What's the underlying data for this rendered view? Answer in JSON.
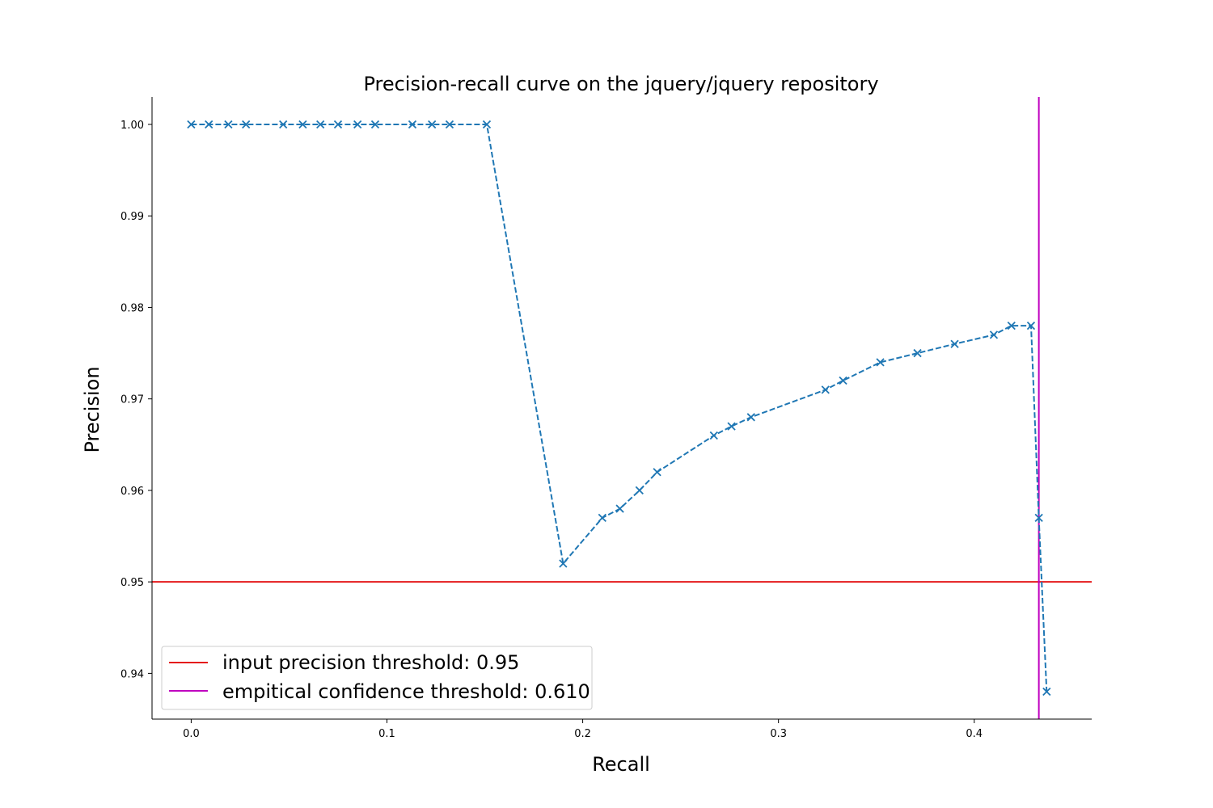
{
  "chart_data": {
    "type": "line",
    "title": "Precision-recall curve on the jquery/jquery repository",
    "xlabel": "Recall",
    "ylabel": "Precision",
    "xlim": [
      -0.02,
      0.46
    ],
    "ylim": [
      0.935,
      1.003
    ],
    "xticks": [
      0.0,
      0.1,
      0.2,
      0.3,
      0.4
    ],
    "xtick_labels": [
      "0.0",
      "0.1",
      "0.2",
      "0.3",
      "0.4"
    ],
    "yticks": [
      0.94,
      0.95,
      0.96,
      0.97,
      0.98,
      0.99,
      1.0
    ],
    "ytick_labels": [
      "0.94",
      "0.95",
      "0.96",
      "0.97",
      "0.98",
      "0.99",
      "1.00"
    ],
    "grid": false,
    "legend_position": "lower-left",
    "series": [
      {
        "color": "#1f77b4",
        "line_style": "dashed",
        "marker": "x",
        "x": [
          0.0,
          0.009,
          0.019,
          0.028,
          0.047,
          0.057,
          0.066,
          0.075,
          0.085,
          0.094,
          0.113,
          0.123,
          0.132,
          0.151,
          0.19,
          0.21,
          0.219,
          0.229,
          0.238,
          0.267,
          0.276,
          0.286,
          0.324,
          0.333,
          0.352,
          0.371,
          0.39,
          0.41,
          0.419,
          0.429,
          0.433,
          0.437
        ],
        "y": [
          1.0,
          1.0,
          1.0,
          1.0,
          1.0,
          1.0,
          1.0,
          1.0,
          1.0,
          1.0,
          1.0,
          1.0,
          1.0,
          1.0,
          0.952,
          0.957,
          0.958,
          0.96,
          0.962,
          0.966,
          0.967,
          0.968,
          0.971,
          0.972,
          0.974,
          0.975,
          0.976,
          0.977,
          0.978,
          0.978,
          0.957,
          0.938
        ]
      }
    ],
    "reference_lines": [
      {
        "orientation": "horizontal",
        "value": 0.95,
        "color": "#e41a1c",
        "label": "input precision threshold: 0.95"
      },
      {
        "orientation": "vertical",
        "value": 0.433,
        "color": "#bf00bf",
        "label": "empitical confidence threshold: 0.610"
      }
    ]
  }
}
